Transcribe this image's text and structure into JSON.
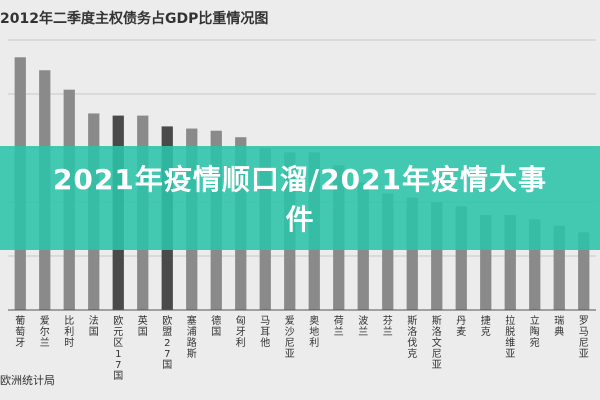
{
  "overlay": {
    "headline": "2021年疫情顺口溜/2021年疫情大事件"
  },
  "chart_data": {
    "type": "bar",
    "title": "2012年二季度主权债务占GDP比重情况图",
    "source": "欧洲统计局",
    "categories": [
      "葡萄牙",
      "爱尔兰",
      "比利时",
      "法国",
      "欧元区17国",
      "英国",
      "欧盟27国",
      "塞浦路斯",
      "德国",
      "匈牙利",
      "马耳他",
      "爱沙尼亚",
      "奥地利",
      "荷兰",
      "波兰",
      "芬兰",
      "斯洛伐克",
      "斯洛文尼亚",
      "丹麦",
      "捷克",
      "拉脱维亚",
      "立陶宛",
      "瑞典",
      "罗马尼亚"
    ],
    "values": [
      117,
      111,
      102,
      91,
      90,
      90,
      85,
      84,
      83,
      80,
      75,
      73,
      73,
      67,
      59,
      54,
      52,
      50,
      48,
      44,
      44,
      42,
      39,
      36
    ],
    "highlighted": [
      "欧元区17国",
      "欧盟27国"
    ],
    "ylim": [
      0,
      125
    ],
    "colors": {
      "bar": "#8a8a8a",
      "bar_highlight": "#4a4a4a",
      "grid": "#c8c8c8",
      "axis": "#555555"
    }
  }
}
